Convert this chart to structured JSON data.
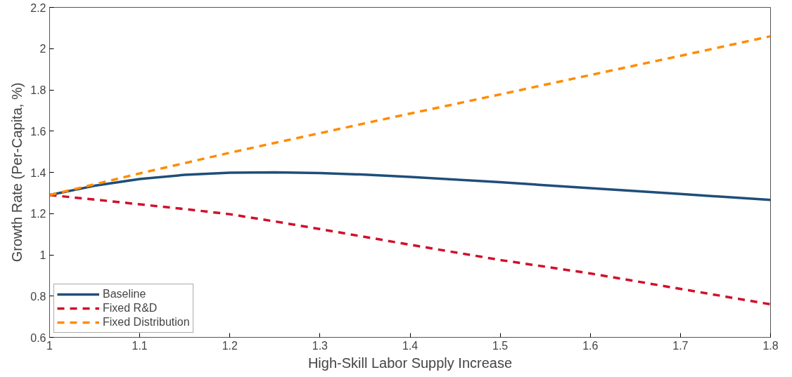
{
  "chart_data": {
    "type": "line",
    "xlabel": "High-Skill Labor Supply Increase",
    "ylabel": "Growth Rate (Per-Capita, %)",
    "x": [
      1.0,
      1.05,
      1.1,
      1.15,
      1.2,
      1.25,
      1.3,
      1.35,
      1.4,
      1.5,
      1.6,
      1.7,
      1.8
    ],
    "series": [
      {
        "name": "Baseline",
        "color": "#1f4e79",
        "line_style": "solid",
        "values": [
          1.29,
          1.335,
          1.368,
          1.388,
          1.398,
          1.4,
          1.397,
          1.389,
          1.378,
          1.352,
          1.323,
          1.295,
          1.266
        ]
      },
      {
        "name": "Fixed R&D",
        "color": "#d0102b",
        "line_style": "dashed",
        "values": [
          1.29,
          1.268,
          1.245,
          1.222,
          1.197,
          1.162,
          1.125,
          1.087,
          1.049,
          0.975,
          0.91,
          0.835,
          0.76
        ]
      },
      {
        "name": "Fixed Distribution",
        "color": "#ff8c00",
        "line_style": "dashed",
        "values": [
          1.29,
          1.342,
          1.395,
          1.445,
          1.495,
          1.543,
          1.59,
          1.638,
          1.685,
          1.778,
          1.872,
          1.965,
          2.06
        ]
      }
    ],
    "xlim": [
      1,
      1.8
    ],
    "xticks": [
      1,
      1.1,
      1.2,
      1.3,
      1.4,
      1.5,
      1.6,
      1.7,
      1.8
    ],
    "ylim": [
      0.6,
      2.2
    ],
    "yticks": [
      0.6,
      0.8,
      1,
      1.2,
      1.4,
      1.6,
      1.8,
      2,
      2.2
    ],
    "grid": false,
    "legend": "bottom left",
    "marker": "none"
  }
}
